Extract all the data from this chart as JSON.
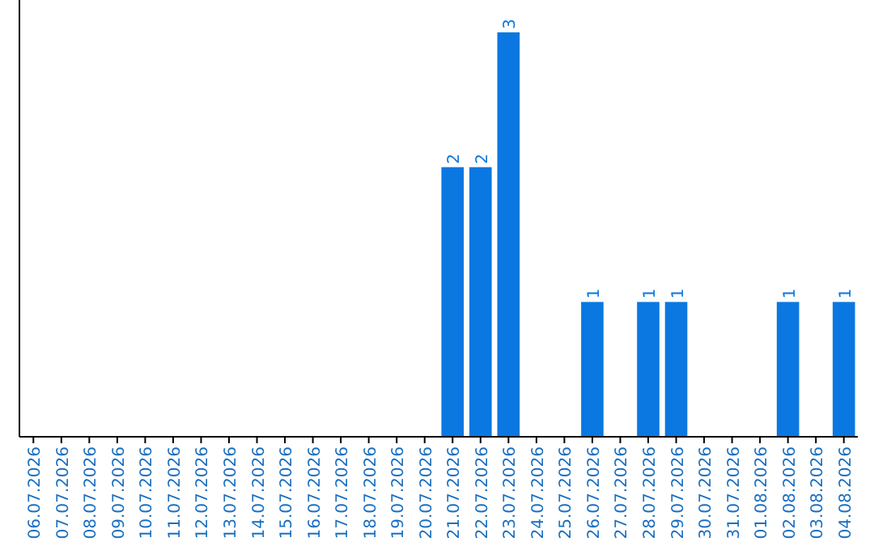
{
  "chart_data": {
    "type": "bar",
    "categories": [
      "06.07.2026",
      "07.07.2026",
      "08.07.2026",
      "09.07.2026",
      "10.07.2026",
      "11.07.2026",
      "12.07.2026",
      "13.07.2026",
      "14.07.2026",
      "15.07.2026",
      "16.07.2026",
      "17.07.2026",
      "18.07.2026",
      "19.07.2026",
      "20.07.2026",
      "21.07.2026",
      "22.07.2026",
      "23.07.2026",
      "24.07.2026",
      "25.07.2026",
      "26.07.2026",
      "27.07.2026",
      "28.07.2026",
      "29.07.2026",
      "30.07.2026",
      "31.07.2026",
      "01.08.2026",
      "02.08.2026",
      "03.08.2026",
      "04.08.2026"
    ],
    "values": [
      null,
      null,
      null,
      null,
      null,
      null,
      null,
      null,
      null,
      null,
      null,
      null,
      null,
      null,
      null,
      2,
      2,
      3,
      null,
      null,
      1,
      null,
      1,
      1,
      null,
      null,
      null,
      1,
      null,
      1
    ],
    "value_labels": [
      null,
      null,
      null,
      null,
      null,
      null,
      null,
      null,
      null,
      null,
      null,
      null,
      null,
      null,
      null,
      "2",
      "2",
      "3",
      null,
      null,
      "1",
      null,
      "1",
      "1",
      null,
      null,
      null,
      "1",
      null,
      "1"
    ],
    "color": "#0a78e0",
    "tick_labels": "x"
  }
}
